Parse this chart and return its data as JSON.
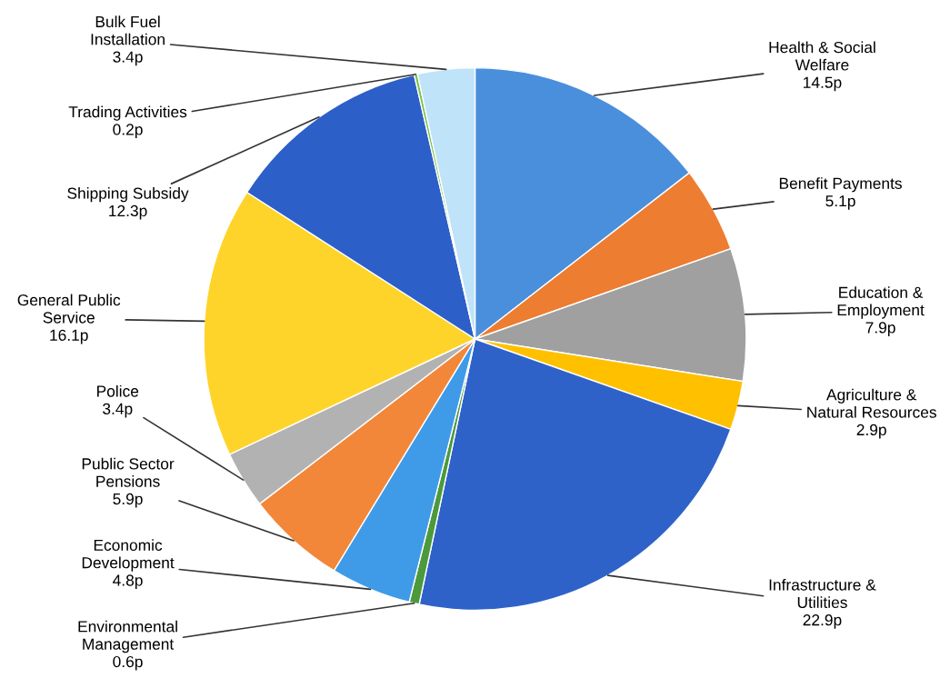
{
  "chart_data": {
    "type": "pie",
    "categories": [
      "Health & Social Welfare",
      "Benefit Payments",
      "Education & Employment",
      "Agriculture & Natural Resources",
      "Infrastructure & Utilities",
      "Environmental Management",
      "Economic Development",
      "Public Sector Pensions",
      "Police",
      "General Public Service",
      "Shipping Subsidy",
      "Trading Activities",
      "Bulk Fuel Installation"
    ],
    "values": [
      14.5,
      5.1,
      7.9,
      2.9,
      22.9,
      0.6,
      4.8,
      5.9,
      3.4,
      16.1,
      12.3,
      0.2,
      3.4
    ],
    "value_labels": [
      "14.5p",
      "5.1p",
      "7.9p",
      "2.9p",
      "22.9p",
      "0.6p",
      "4.8p",
      "5.9p",
      "3.4p",
      "16.1p",
      "12.3p",
      "0.2p",
      "3.4p"
    ],
    "colors": [
      "#4a8fdb",
      "#ed7d31",
      "#a0a0a0",
      "#ffc000",
      "#2f62c9",
      "#4c9a3c",
      "#3f9be8",
      "#f2873a",
      "#b2b2b2",
      "#ffd42a",
      "#2c5fc8",
      "#7cc04a",
      "#bfe3f8"
    ],
    "legend": false
  }
}
